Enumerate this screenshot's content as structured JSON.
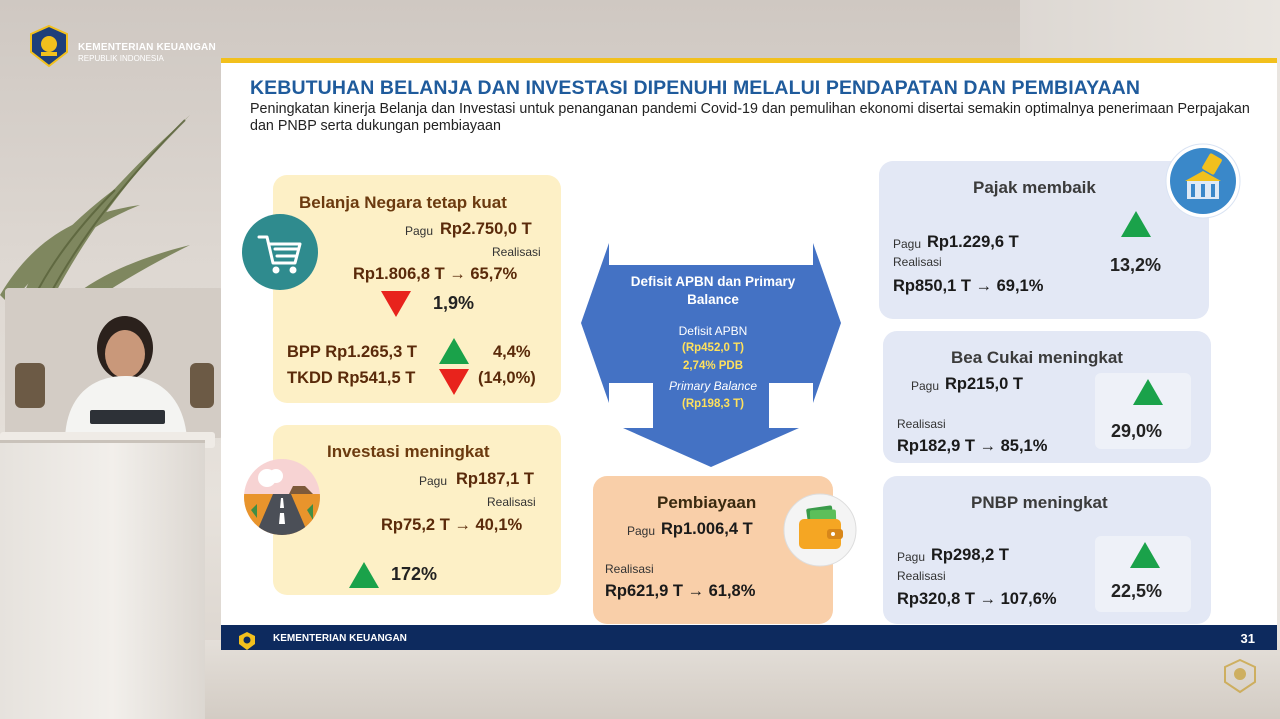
{
  "org": {
    "name": "KEMENTERIAN KEUANGAN",
    "subname": "REPUBLIK INDONESIA"
  },
  "slide": {
    "title": "KEBUTUHAN BELANJA DAN INVESTASI DIPENUHI MELALUI PENDAPATAN DAN PEMBIAYAAN",
    "subtitle": "Peningkatan kinerja Belanja dan Investasi untuk penanganan pandemi Covid-19 dan pemulihan ekonomi disertai semakin optimalnya penerimaan Perpajakan dan PNBP serta dukungan pembiayaan",
    "belanja": {
      "title": "Belanja Negara tetap kuat",
      "pagu_label": "Pagu",
      "pagu_value": "Rp2.750,0 T",
      "realisasi_label": "Realisasi",
      "realisasi_value": "Rp1.806,8 T → 65,7%",
      "change": "1,9%",
      "bpp": "BPP Rp1.265,3 T",
      "bpp_change": "4,4%",
      "tkdd": "TKDD Rp541,5 T",
      "tkdd_change": "(14,0%)"
    },
    "investasi": {
      "title": "Investasi meningkat",
      "pagu_label": "Pagu",
      "pagu_value": "Rp187,1 T",
      "realisasi_label": "Realisasi",
      "realisasi_value": "Rp75,2 T → 40,1%",
      "change": "172%"
    },
    "defisit": {
      "heading": "Defisit APBN dan Primary Balance",
      "defisit_label": "Defisit APBN",
      "defisit_value": "(Rp452,0 T)",
      "pdb": "2,74% PDB",
      "pb_label": "Primary Balance",
      "pb_value": "(Rp198,3 T)"
    },
    "pembiayaan": {
      "title": "Pembiayaan",
      "pagu_label": "Pagu",
      "pagu_value": "Rp1.006,4 T",
      "realisasi_label": "Realisasi",
      "realisasi_value": "Rp621,9 T → 61,8%"
    },
    "pajak": {
      "title": "Pajak membaik",
      "pagu_label": "Pagu",
      "pagu_value": "Rp1.229,6 T",
      "realisasi_label": "Realisasi",
      "realisasi_value": "Rp850,1 T → 69,1%",
      "change": "13,2%"
    },
    "bea": {
      "title": "Bea Cukai meningkat",
      "pagu_label": "Pagu",
      "pagu_value": "Rp215,0 T",
      "realisasi_label": "Realisasi",
      "realisasi_value": "Rp182,9 T → 85,1%",
      "change": "29,0%"
    },
    "pnbp": {
      "title": "PNBP meningkat",
      "pagu_label": "Pagu",
      "pagu_value": "Rp298,2 T",
      "realisasi_label": "Realisasi",
      "realisasi_value": "Rp320,8 T → 107,6%",
      "change": "22,5%"
    },
    "footer": {
      "org": "KEMENTERIAN KEUANGAN",
      "page": "31"
    }
  },
  "colors": {
    "title_blue": "#1f5b9c",
    "accent_yellow": "#f2c01d",
    "card_yellow": "#fdf0c6",
    "card_blue": "#e3e8f5",
    "card_orange": "#f9cfa9",
    "arrow_blue": "#4472c4",
    "up_green": "#1aa24a",
    "down_red": "#e8231c",
    "footer_navy": "#0d2a5e"
  },
  "icons": {
    "belanja": "shopping-cart-icon",
    "investasi": "road-icon",
    "pembiayaan": "wallet-icon",
    "pajak": "tax-building-icon"
  }
}
